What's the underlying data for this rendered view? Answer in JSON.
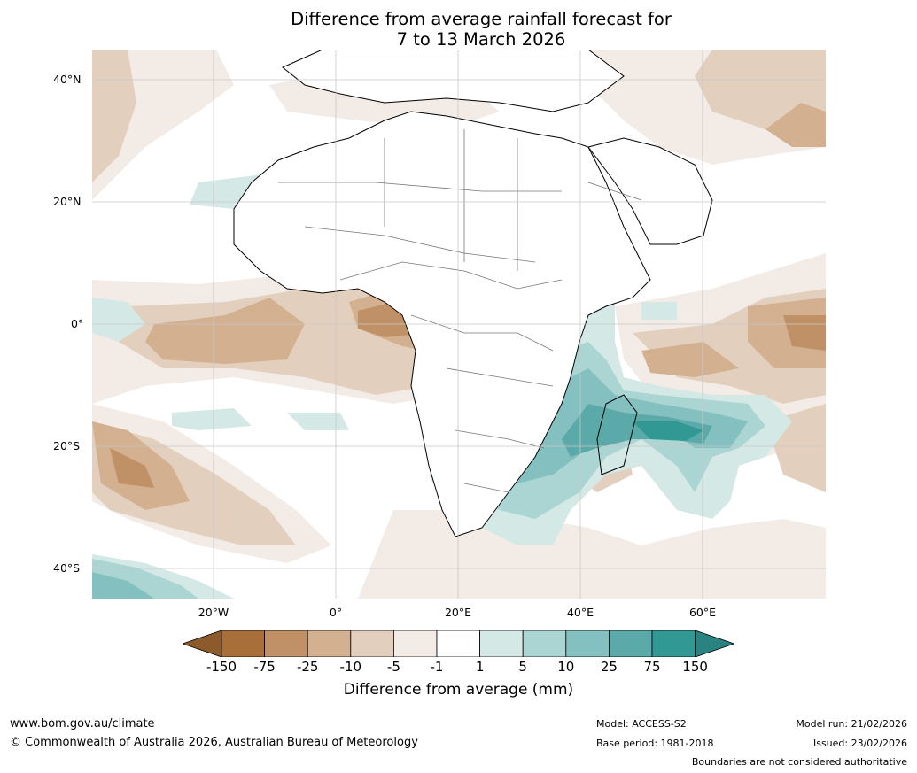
{
  "title": {
    "line1": "Difference from average rainfall forecast for",
    "line2": "7 to 13 March 2026"
  },
  "map": {
    "lat_labels": [
      "40°N",
      "20°N",
      "0°",
      "20°S",
      "40°S"
    ],
    "lon_labels": [
      "20°W",
      "0°",
      "20°E",
      "40°E",
      "60°E"
    ],
    "land_fill": "#ffffff",
    "coast_color": "#000000",
    "border_color": "#777777"
  },
  "legend": {
    "title": "Difference from average (mm)",
    "ticks": [
      "-150",
      "-75",
      "-25",
      "-10",
      "-5",
      "-1",
      "1",
      "5",
      "10",
      "25",
      "75",
      "150"
    ],
    "colors": [
      "#a86f3a",
      "#c09166",
      "#d3b090",
      "#e3cfbd",
      "#f3ebe6",
      "#ffffff",
      "#d4e8e6",
      "#abd5d3",
      "#83c0bf",
      "#5ba9a8",
      "#329894"
    ],
    "under_color": "#8c5a2b",
    "over_color": "#2a8380"
  },
  "footer": {
    "website": "www.bom.gov.au/climate",
    "copyright": "© Commonwealth of Australia 2026, Australian Bureau of Meteorology",
    "model": "Model: ACCESS-S2",
    "base_period": "Base period: 1981-2018",
    "model_run": "Model run: 21/02/2026",
    "issued": "Issued: 23/02/2026",
    "disclaimer": "Boundaries are not considered authoritative"
  }
}
